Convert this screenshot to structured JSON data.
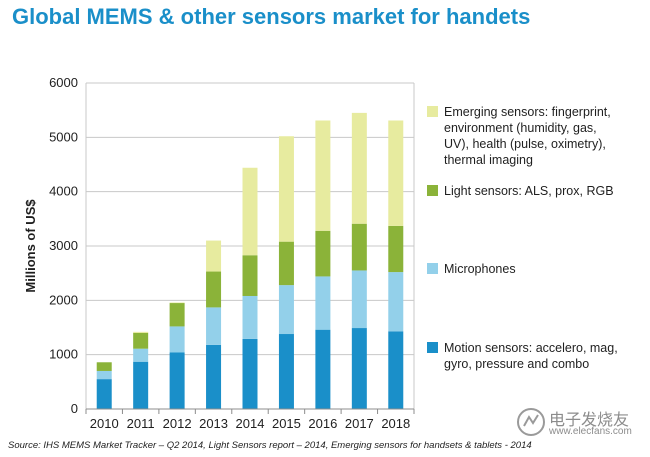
{
  "header": {
    "title": "Global MEMS & other sensors market for handets"
  },
  "footer": {
    "source": "Source: IHS MEMS Market Tracker – Q2 2014, Light Sensors report – 2014, Emerging sensors for handsets & tablets - 2014"
  },
  "watermark": {
    "text_cn": "电子发烧友",
    "url": "www.elecfans.com"
  },
  "chart_data": {
    "type": "bar",
    "stacked": true,
    "title": "Global MEMS & other sensors market for handets",
    "xlabel": "",
    "ylabel": "Millions of US$",
    "ylim": [
      0,
      6000
    ],
    "yticks": [
      0,
      1000,
      2000,
      3000,
      4000,
      5000,
      6000
    ],
    "grid": true,
    "legend_position": "right",
    "categories": [
      "2010",
      "2011",
      "2012",
      "2013",
      "2014",
      "2015",
      "2016",
      "2017",
      "2018"
    ],
    "series": [
      {
        "name": "Motion sensors: accelero, mag, gyro, pressure and combo",
        "legend_lines": [
          "Motion sensors: accelero, mag,",
          "gyro, pressure and combo"
        ],
        "color": "#1a8fc9",
        "values": [
          550,
          870,
          1040,
          1180,
          1290,
          1380,
          1460,
          1490,
          1430
        ]
      },
      {
        "name": "Microphones",
        "legend_lines": [
          "Microphones"
        ],
        "color": "#93d0ea",
        "values": [
          150,
          240,
          480,
          690,
          790,
          900,
          980,
          1060,
          1090
        ]
      },
      {
        "name": "Light sensors: ALS, prox, RGB",
        "legend_lines": [
          "Light sensors: ALS, prox, RGB"
        ],
        "color": "#8bb339",
        "values": [
          160,
          290,
          430,
          660,
          750,
          800,
          840,
          860,
          850
        ]
      },
      {
        "name": "Emerging sensors: fingerprint, environment (humidity, gas, UV), health (pulse, oximetry), thermal imaging",
        "legend_lines": [
          "Emerging sensors: fingerprint,",
          "environment (humidity, gas,",
          "UV), health (pulse, oximetry),",
          "thermal imaging"
        ],
        "color": "#e7eb9f",
        "values": [
          0,
          20,
          10,
          570,
          1610,
          1940,
          2030,
          2040,
          1940
        ]
      }
    ]
  }
}
